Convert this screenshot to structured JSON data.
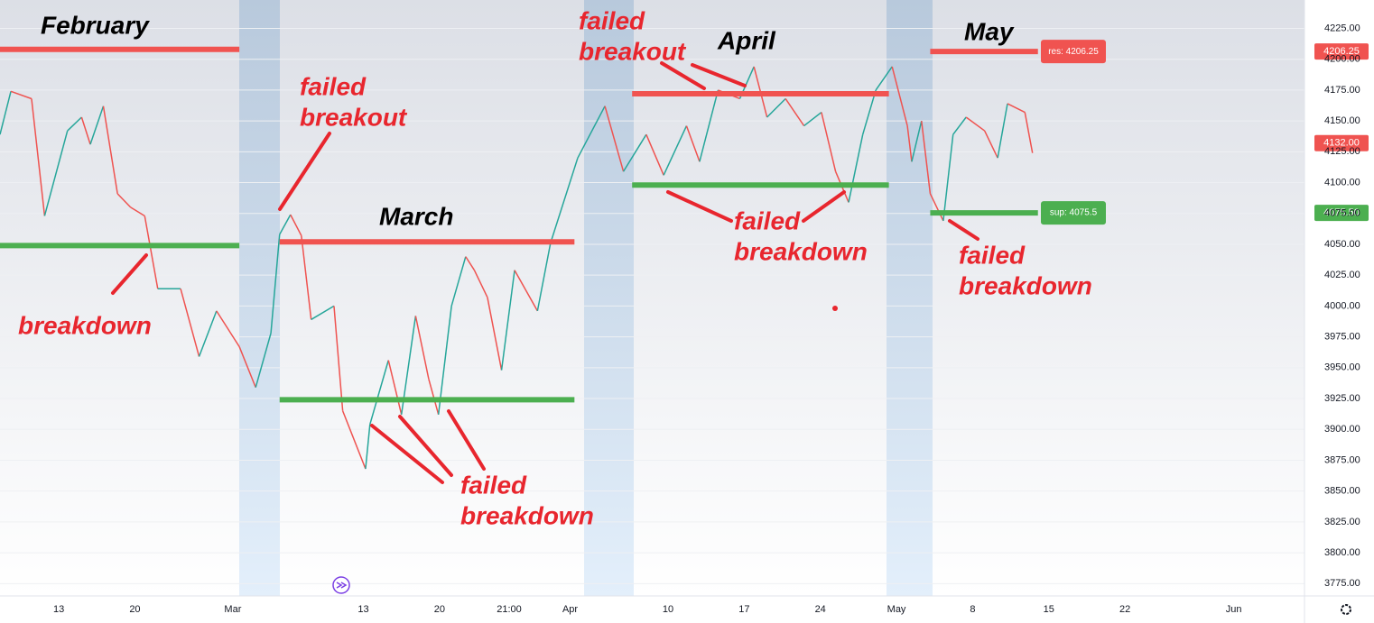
{
  "chart_data": {
    "type": "line",
    "x": [
      6.6,
      7.6,
      9.5,
      10.7,
      12.8,
      14.1,
      14.9,
      16.1,
      17.4,
      18.6,
      19.9,
      21.1,
      23.2,
      24.9,
      26.5,
      28.6,
      30.1,
      31.5,
      32.3,
      33.3,
      34.3,
      35.2,
      37.3,
      38.1,
      40.2,
      40.6,
      42.3,
      43.5,
      44.8,
      46.0,
      46.9,
      48.1,
      49.4,
      50.2,
      51.4,
      52.7,
      53.9,
      56.0,
      57.2,
      59.7,
      62.2,
      63.9,
      66.0,
      67.6,
      69.7,
      70.9,
      72.6,
      74.6,
      75.9,
      77.1,
      78.8,
      80.5,
      82.1,
      83.4,
      84.6,
      85.9,
      87.1,
      88.6,
      90.0,
      90.4,
      91.3,
      92.1,
      93.3,
      94.2,
      95.4,
      97.1,
      98.3,
      99.2,
      100.8,
      101.5
    ],
    "values": [
      4139,
      4174,
      4168,
      4073,
      4142,
      4153,
      4131,
      4162,
      4091,
      4080,
      4073,
      4014,
      4014,
      3959,
      3996,
      3967,
      3934,
      3978,
      4058,
      4074,
      4057,
      3989,
      4000,
      3915,
      3868,
      3904,
      3956,
      3912,
      3992,
      3941,
      3912,
      4000,
      4040,
      4029,
      4007,
      3948,
      4029,
      3996,
      4051,
      4120,
      4162,
      4109,
      4139,
      4106,
      4146,
      4117,
      4175,
      4168,
      4194,
      4153,
      4168,
      4146,
      4157,
      4109,
      4084,
      4139,
      4175,
      4194,
      4146,
      4117,
      4150,
      4091,
      4069,
      4139,
      4153,
      4142,
      4120,
      4164,
      4157,
      4124
    ],
    "up_color": "#26a69a",
    "down_color": "#ef5350",
    "xlim": [
      6.6,
      126.5
    ],
    "xticks": [
      {
        "value": 12,
        "label": "13"
      },
      {
        "value": 19,
        "label": "20"
      },
      {
        "value": 28,
        "label": "Mar"
      },
      {
        "value": 40,
        "label": "13"
      },
      {
        "value": 47,
        "label": "20"
      },
      {
        "value": 53.4,
        "label": "21:00"
      },
      {
        "value": 59,
        "label": "Apr"
      },
      {
        "value": 68,
        "label": "10"
      },
      {
        "value": 75,
        "label": "17"
      },
      {
        "value": 82,
        "label": "24"
      },
      {
        "value": 89,
        "label": "May"
      },
      {
        "value": 96,
        "label": "8"
      },
      {
        "value": 103,
        "label": "15"
      },
      {
        "value": 110,
        "label": "22"
      },
      {
        "value": 120,
        "label": "Jun"
      }
    ],
    "ylim": [
      3765,
      4248
    ],
    "yticks": [
      {
        "value": 3775,
        "label": "3775.00"
      },
      {
        "value": 3800,
        "label": "3800.00"
      },
      {
        "value": 3825,
        "label": "3825.00"
      },
      {
        "value": 3850,
        "label": "3850.00"
      },
      {
        "value": 3875,
        "label": "3875.00"
      },
      {
        "value": 3900,
        "label": "3900.00"
      },
      {
        "value": 3925,
        "label": "3925.00"
      },
      {
        "value": 3950,
        "label": "3950.00"
      },
      {
        "value": 3975,
        "label": "3975.00"
      },
      {
        "value": 4000,
        "label": "4000.00"
      },
      {
        "value": 4025,
        "label": "4025.00"
      },
      {
        "value": 4050,
        "label": "4050.00"
      },
      {
        "value": 4075,
        "label": "4075.00"
      },
      {
        "value": 4100,
        "label": "4100.00"
      },
      {
        "value": 4125,
        "label": "4125.00"
      },
      {
        "value": 4150,
        "label": "4150.00"
      },
      {
        "value": 4175,
        "label": "4175.00"
      },
      {
        "value": 4200,
        "label": "4200.00"
      },
      {
        "value": 4225,
        "label": "4225.00"
      }
    ],
    "levels": [
      {
        "value": 4208,
        "x": [
          6.6,
          28.6
        ],
        "color": "#f05350"
      },
      {
        "value": 4049,
        "x": [
          6.6,
          28.6
        ],
        "color": "#4caf50"
      },
      {
        "value": 4052,
        "x": [
          32.3,
          59.4
        ],
        "color": "#f05350"
      },
      {
        "value": 3924,
        "x": [
          32.3,
          59.4
        ],
        "color": "#4caf50"
      },
      {
        "value": 4172,
        "x": [
          64.7,
          88.3
        ],
        "color": "#f05350"
      },
      {
        "value": 4098,
        "x": [
          64.7,
          88.3
        ],
        "color": "#4caf50"
      },
      {
        "value": 4206.25,
        "x": [
          92.1,
          102.0
        ],
        "color": "#f05350",
        "label": "res: 4206.25",
        "axis_label": "4206.25"
      },
      {
        "value": 4075.5,
        "x": [
          92.1,
          102.0
        ],
        "color": "#4caf50",
        "label": "sup: 4075.5",
        "axis_label": "4075.50"
      }
    ],
    "last_price": {
      "value": 4132,
      "label": "4132.00"
    },
    "annotations": [
      {
        "lines": [
          "February"
        ],
        "color": "#000000"
      },
      {
        "lines": [
          "March"
        ],
        "color": "#000000"
      },
      {
        "lines": [
          "April"
        ],
        "color": "#000000"
      },
      {
        "lines": [
          "May"
        ],
        "color": "#000000"
      },
      {
        "lines": [
          "breakdown"
        ],
        "color": "#e8262e"
      },
      {
        "lines": [
          "failed",
          "breakout"
        ],
        "color": "#e8262e"
      },
      {
        "lines": [
          "failed",
          "breakdown"
        ],
        "color": "#e8262e"
      },
      {
        "lines": [
          "failed",
          "breakout"
        ],
        "color": "#e8262e"
      },
      {
        "lines": [
          "failed",
          "breakdown"
        ],
        "color": "#e8262e"
      },
      {
        "lines": [
          "failed",
          "breakdown"
        ],
        "color": "#e8262e"
      }
    ]
  }
}
